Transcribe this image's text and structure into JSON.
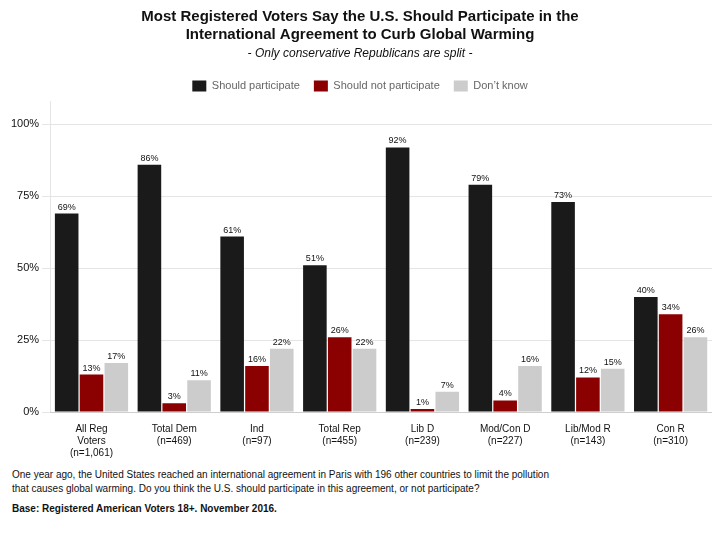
{
  "chart_data": {
    "type": "bar",
    "title": "Most Registered Voters Say the U.S. Should Participate in the\nInternational Agreement to Curb Global Warming",
    "subtitle": "- Only conservative Republicans are split -",
    "categories": [
      "All Reg\nVoters\n(n=1,061)",
      "Total Dem\n(n=469)",
      "Ind\n(n=97)",
      "Total Rep\n(n=455)",
      "Lib D\n(n=239)",
      "Mod/Con D\n(n=227)",
      "Lib/Mod R\n(n=143)",
      "Con R\n(n=310)"
    ],
    "series": [
      {
        "name": "Should participate",
        "color": "#1a1a1a",
        "values": [
          69,
          86,
          61,
          51,
          92,
          79,
          73,
          40
        ],
        "value_labels": [
          "69%",
          "86%",
          "61%",
          "51%",
          "92%",
          "79%",
          "73%",
          "40%"
        ]
      },
      {
        "name": "Should not participate",
        "color": "#8b0000",
        "values": [
          13,
          3,
          16,
          26,
          1,
          4,
          12,
          34
        ],
        "value_labels": [
          "13%",
          "3%",
          "16%",
          "26%",
          "1%",
          "4%",
          "12%",
          "34%"
        ]
      },
      {
        "name": "Don’t know",
        "color": "#cccccc",
        "values": [
          17,
          11,
          22,
          22,
          7,
          16,
          15,
          26
        ],
        "value_labels": [
          "17%",
          "11%",
          "22%",
          "22%",
          "7%",
          "16%",
          "15%",
          "26%"
        ]
      }
    ],
    "ylim": [
      0,
      108
    ],
    "yticks": [
      {
        "value": 0,
        "label": "0%"
      },
      {
        "value": 25,
        "label": "25%"
      },
      {
        "value": 50,
        "label": "50%"
      },
      {
        "value": 75,
        "label": "75%"
      },
      {
        "value": 100,
        "label": "100%"
      }
    ],
    "grid": true,
    "legend": "top",
    "data_labels": true,
    "annotations": [
      "One year ago, the United States reached an international agreement in Paris with 196 other countries to limit the pollution",
      "that causes global warming. Do you think the U.S. should participate in this agreement, or not participate?",
      "Base: Registered American Voters 18+. November 2016."
    ]
  }
}
